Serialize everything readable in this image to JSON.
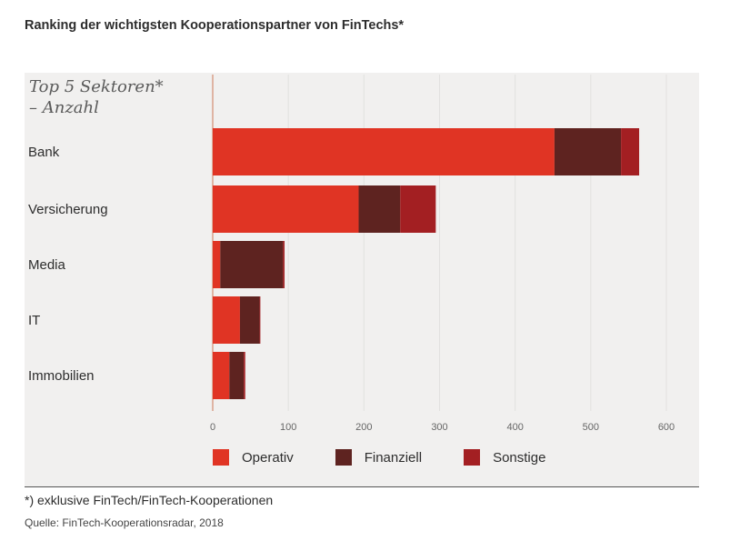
{
  "title": "Ranking der wichtigsten Kooperationspartner von FinTechs*",
  "subtitle_line1": "Top 5 Sektoren*",
  "subtitle_line2": "– Anzahl",
  "footnote": "*) exklusive FinTech/FinTech-Kooperationen",
  "source": "Quelle: FinTech-Kooperationsradar, 2018",
  "chart_data": {
    "type": "bar",
    "orientation": "horizontal",
    "stacked": true,
    "categories": [
      "Bank",
      "Versicherung",
      "Media",
      "IT",
      "Immobilien"
    ],
    "series": [
      {
        "name": "Operativ",
        "color": "#e03424",
        "values": [
          452,
          193,
          10,
          36,
          22
        ]
      },
      {
        "name": "Finanziell",
        "color": "#5e2320",
        "values": [
          88,
          55,
          83,
          26,
          19
        ]
      },
      {
        "name": "Sonstige",
        "color": "#a31f22",
        "values": [
          24,
          47,
          2,
          1,
          2
        ]
      }
    ],
    "xlim": [
      0,
      600
    ],
    "xticks": [
      "0",
      "100",
      "200",
      "300",
      "400",
      "500",
      "600"
    ],
    "grid": true,
    "legend_position": "bottom"
  }
}
